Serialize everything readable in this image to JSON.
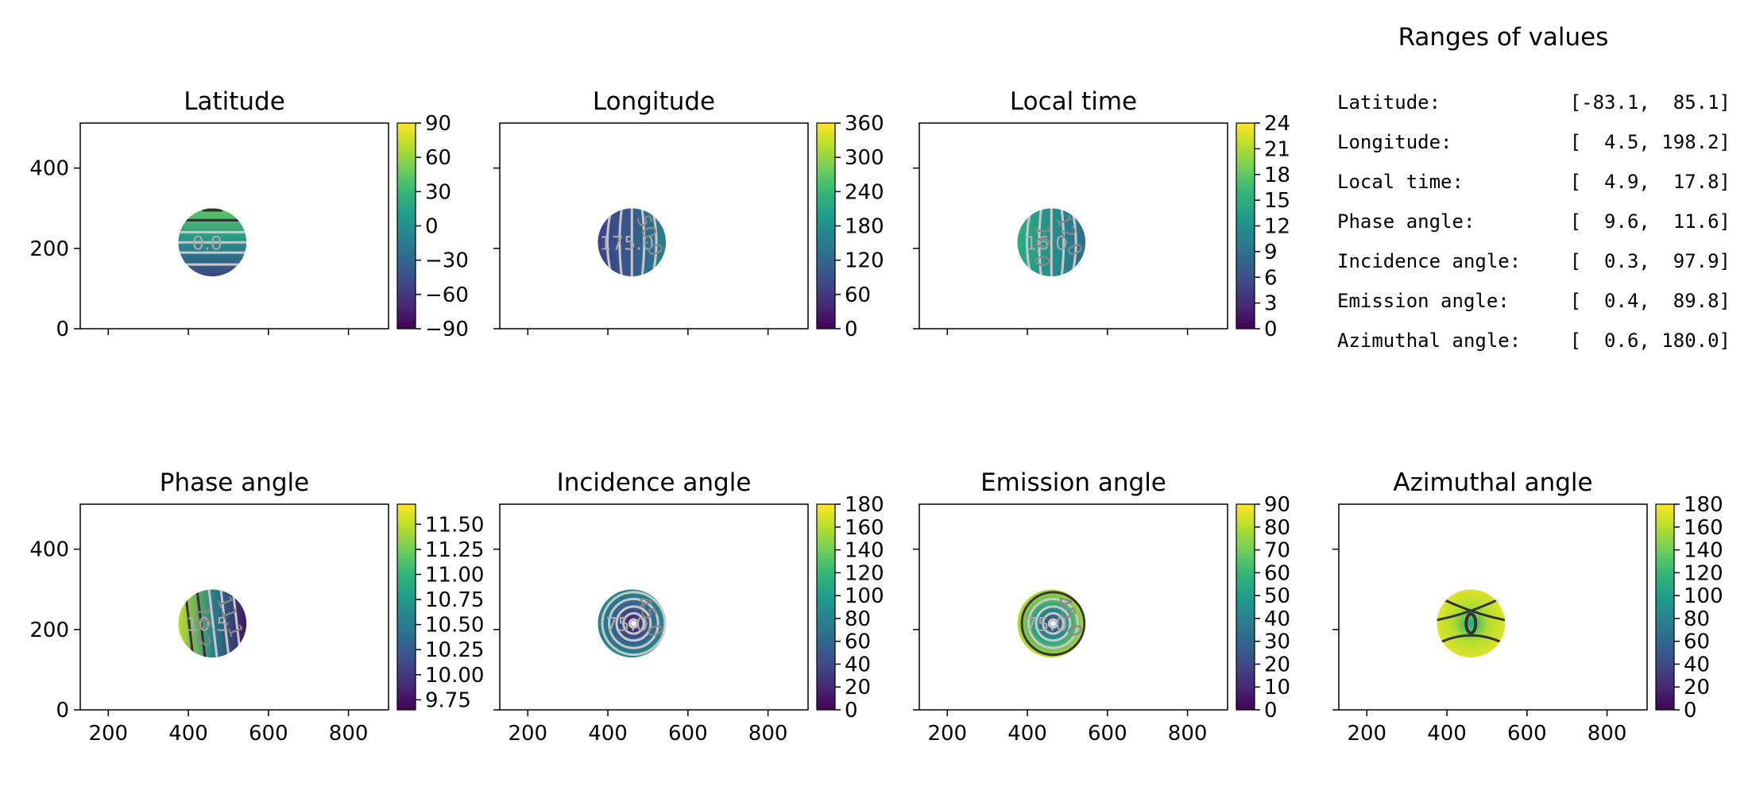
{
  "colormap": "viridis",
  "colors": {
    "viridis": [
      "#440154",
      "#482878",
      "#3e4989",
      "#31688e",
      "#26828e",
      "#1f9e89",
      "#35b779",
      "#6ece58",
      "#b5de2b",
      "#fde725"
    ],
    "axis": "#000000",
    "contour_light": "#c8c8c8",
    "contour_dark": "#333333"
  },
  "chart_data": [
    {
      "type": "heatmap",
      "id": "latitude",
      "title": "Latitude",
      "xlim": [
        130,
        900
      ],
      "ylim": [
        0,
        512
      ],
      "xticks": [
        200,
        400,
        600,
        800
      ],
      "yticks": [
        0,
        200,
        400
      ],
      "show_xticklabels": false,
      "show_yticklabels": true,
      "colorbar": {
        "min": -90,
        "max": 90,
        "ticks": [
          90,
          60,
          30,
          0,
          -30,
          -60,
          -90
        ]
      },
      "disk": {
        "center": [
          460,
          215
        ],
        "radius": 85
      },
      "contour_labels": [
        "0.0"
      ]
    },
    {
      "type": "heatmap",
      "id": "longitude",
      "title": "Longitude",
      "xlim": [
        130,
        900
      ],
      "ylim": [
        0,
        512
      ],
      "xticks": [
        200,
        400,
        600,
        800
      ],
      "yticks": [
        0,
        200,
        400
      ],
      "show_xticklabels": false,
      "show_yticklabels": false,
      "colorbar": {
        "min": 0,
        "max": 360,
        "ticks": [
          360,
          300,
          240,
          180,
          120,
          60,
          0
        ]
      },
      "disk": {
        "center": [
          460,
          215
        ],
        "radius": 85
      },
      "contour_labels": [
        "175.0",
        "50.0"
      ]
    },
    {
      "type": "heatmap",
      "id": "local-time",
      "title": "Local time",
      "xlim": [
        130,
        900
      ],
      "ylim": [
        0,
        512
      ],
      "xticks": [
        200,
        400,
        600,
        800
      ],
      "yticks": [
        0,
        200,
        400
      ],
      "show_xticklabels": false,
      "show_yticklabels": false,
      "colorbar": {
        "min": 0,
        "max": 24,
        "ticks": [
          24,
          21,
          18,
          15,
          12,
          9,
          6,
          3,
          0
        ]
      },
      "disk": {
        "center": [
          460,
          215
        ],
        "radius": 85
      },
      "contour_labels": [
        "16.0",
        "12.0",
        "10.0"
      ]
    },
    {
      "type": "heatmap",
      "id": "phase-angle",
      "title": "Phase angle",
      "xlim": [
        130,
        900
      ],
      "ylim": [
        0,
        512
      ],
      "xticks": [
        200,
        400,
        600,
        800
      ],
      "yticks": [
        0,
        200,
        400
      ],
      "show_xticklabels": true,
      "show_yticklabels": true,
      "colorbar": {
        "min": 9.65,
        "max": 11.7,
        "ticks": [
          11.5,
          11.25,
          11.0,
          10.75,
          10.5,
          10.25,
          10.0,
          9.75
        ],
        "ticklabels": [
          "11.50",
          "11.25",
          "11.00",
          "10.75",
          "10.50",
          "10.25",
          "10.00",
          "9.75"
        ]
      },
      "disk": {
        "center": [
          460,
          215
        ],
        "radius": 85
      },
      "contour_labels": [
        "10.5",
        "11.1",
        "10.2"
      ]
    },
    {
      "type": "heatmap",
      "id": "incidence-angle",
      "title": "Incidence angle",
      "xlim": [
        130,
        900
      ],
      "ylim": [
        0,
        512
      ],
      "xticks": [
        200,
        400,
        600,
        800
      ],
      "yticks": [
        0,
        200,
        400
      ],
      "show_xticklabels": true,
      "show_yticklabels": false,
      "colorbar": {
        "min": 0,
        "max": 180,
        "ticks": [
          180,
          160,
          140,
          120,
          100,
          80,
          60,
          40,
          20,
          0
        ]
      },
      "disk": {
        "center": [
          460,
          215
        ],
        "radius": 85
      },
      "contour_labels": [
        "75.0",
        "45.0"
      ]
    },
    {
      "type": "heatmap",
      "id": "emission-angle",
      "title": "Emission angle",
      "xlim": [
        130,
        900
      ],
      "ylim": [
        0,
        512
      ],
      "xticks": [
        200,
        400,
        600,
        800
      ],
      "yticks": [
        0,
        200,
        400
      ],
      "show_xticklabels": true,
      "show_yticklabels": false,
      "colorbar": {
        "min": 0,
        "max": 90,
        "ticks": [
          90,
          80,
          70,
          60,
          50,
          40,
          30,
          20,
          10,
          0
        ]
      },
      "disk": {
        "center": [
          460,
          215
        ],
        "radius": 85
      },
      "contour_labels": [
        "75.0",
        "45.0"
      ]
    },
    {
      "type": "heatmap",
      "id": "azimuthal-angle",
      "title": "Azimuthal angle",
      "xlim": [
        130,
        900
      ],
      "ylim": [
        0,
        512
      ],
      "xticks": [
        200,
        400,
        600,
        800
      ],
      "yticks": [
        0,
        200,
        400
      ],
      "show_xticklabels": true,
      "show_yticklabels": false,
      "colorbar": {
        "min": 0,
        "max": 180,
        "ticks": [
          180,
          160,
          140,
          120,
          100,
          80,
          60,
          40,
          20,
          0
        ]
      },
      "disk": {
        "center": [
          460,
          215
        ],
        "radius": 85
      },
      "contour_labels": []
    }
  ],
  "ranges": {
    "title": "Ranges of values",
    "rows": [
      {
        "label": "Latitude:",
        "value": "[-83.1,  85.1]"
      },
      {
        "label": "Longitude:",
        "value": "[  4.5, 198.2]"
      },
      {
        "label": "Local time:",
        "value": "[  4.9,  17.8]"
      },
      {
        "label": "Phase angle:",
        "value": "[  9.6,  11.6]"
      },
      {
        "label": "Incidence angle:",
        "value": "[  0.3,  97.9]"
      },
      {
        "label": "Emission angle:",
        "value": "[  0.4,  89.8]"
      },
      {
        "label": "Azimuthal angle:",
        "value": "[  0.6, 180.0]"
      }
    ]
  }
}
